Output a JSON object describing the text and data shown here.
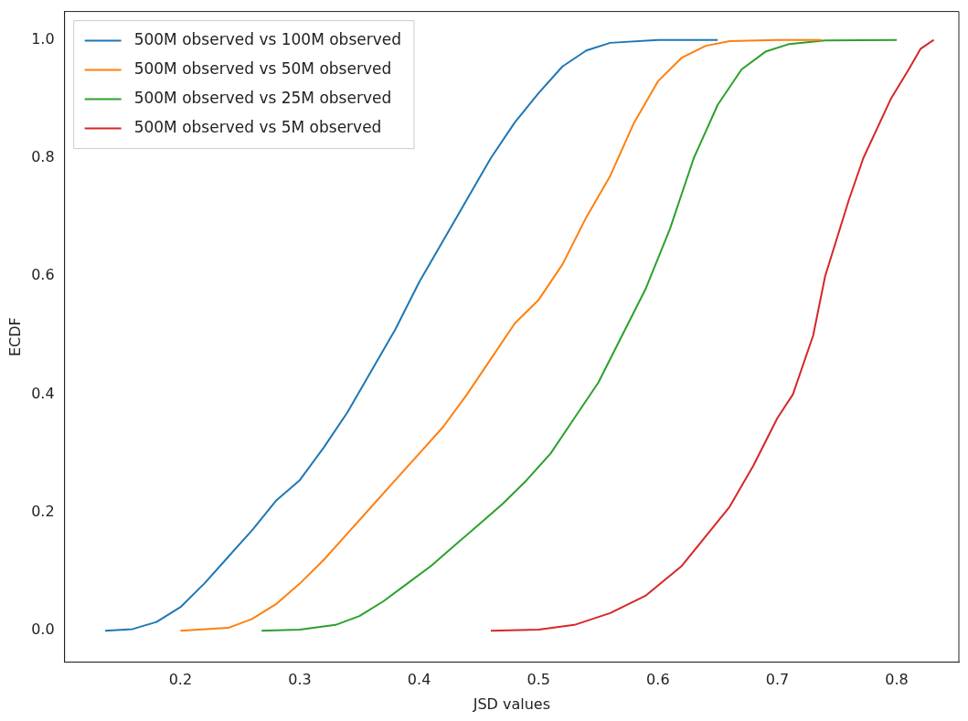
{
  "chart_data": {
    "type": "line",
    "xlabel": "JSD values",
    "ylabel": "ECDF",
    "xlim": [
      0.103,
      0.852
    ],
    "ylim": [
      -0.053,
      1.048
    ],
    "xticks": [
      0.2,
      0.3,
      0.4,
      0.5,
      0.6,
      0.7,
      0.8
    ],
    "yticks": [
      {
        "value": 0,
        "label": "0.0"
      },
      {
        "value": 0.2,
        "label": "0.2"
      },
      {
        "value": 0.4,
        "label": "0.4"
      },
      {
        "value": 0.6,
        "label": "0.6"
      },
      {
        "value": 0.8,
        "label": "0.8"
      },
      {
        "value": 1,
        "label": "1.0"
      }
    ],
    "grid": false,
    "legend": "top left",
    "marker": "none",
    "line_style": "solid",
    "series": [
      {
        "name": "500M observed vs 100M observed",
        "color": "#1f77b4",
        "x": [
          0.137,
          0.16,
          0.18,
          0.2,
          0.22,
          0.24,
          0.26,
          0.28,
          0.3,
          0.32,
          0.34,
          0.36,
          0.38,
          0.4,
          0.42,
          0.44,
          0.46,
          0.48,
          0.5,
          0.52,
          0.54,
          0.56,
          0.6,
          0.65
        ],
        "values": [
          0,
          0.003,
          0.015,
          0.04,
          0.08,
          0.125,
          0.17,
          0.22,
          0.255,
          0.31,
          0.37,
          0.44,
          0.51,
          0.59,
          0.66,
          0.73,
          0.8,
          0.86,
          0.91,
          0.955,
          0.982,
          0.995,
          1,
          1
        ]
      },
      {
        "name": "500M observed vs 50M observed",
        "color": "#ff7f0e",
        "x": [
          0.2,
          0.24,
          0.26,
          0.28,
          0.3,
          0.32,
          0.34,
          0.36,
          0.38,
          0.4,
          0.42,
          0.44,
          0.46,
          0.48,
          0.5,
          0.52,
          0.54,
          0.56,
          0.58,
          0.6,
          0.62,
          0.64,
          0.66,
          0.7,
          0.737
        ],
        "values": [
          0,
          0.005,
          0.02,
          0.045,
          0.08,
          0.12,
          0.165,
          0.21,
          0.255,
          0.3,
          0.345,
          0.4,
          0.46,
          0.52,
          0.56,
          0.62,
          0.7,
          0.77,
          0.86,
          0.93,
          0.97,
          0.99,
          0.998,
          1,
          1
        ]
      },
      {
        "name": "500M observed vs 25M observed",
        "color": "#2ca02c",
        "x": [
          0.268,
          0.3,
          0.33,
          0.35,
          0.37,
          0.39,
          0.41,
          0.43,
          0.45,
          0.47,
          0.49,
          0.51,
          0.53,
          0.55,
          0.57,
          0.59,
          0.61,
          0.62,
          0.63,
          0.65,
          0.67,
          0.69,
          0.71,
          0.74,
          0.8
        ],
        "values": [
          0,
          0.002,
          0.01,
          0.025,
          0.05,
          0.08,
          0.11,
          0.145,
          0.18,
          0.215,
          0.255,
          0.3,
          0.36,
          0.42,
          0.5,
          0.58,
          0.68,
          0.74,
          0.8,
          0.89,
          0.95,
          0.98,
          0.993,
          0.999,
          1
        ]
      },
      {
        "name": "500M observed vs 5M observed",
        "color": "#d62728",
        "x": [
          0.46,
          0.5,
          0.53,
          0.56,
          0.59,
          0.62,
          0.64,
          0.66,
          0.68,
          0.7,
          0.713,
          0.73,
          0.74,
          0.76,
          0.772,
          0.795,
          0.81,
          0.82,
          0.831
        ],
        "values": [
          0,
          0.002,
          0.01,
          0.03,
          0.06,
          0.11,
          0.16,
          0.21,
          0.28,
          0.36,
          0.4,
          0.5,
          0.6,
          0.73,
          0.8,
          0.9,
          0.95,
          0.985,
          1
        ]
      }
    ]
  }
}
